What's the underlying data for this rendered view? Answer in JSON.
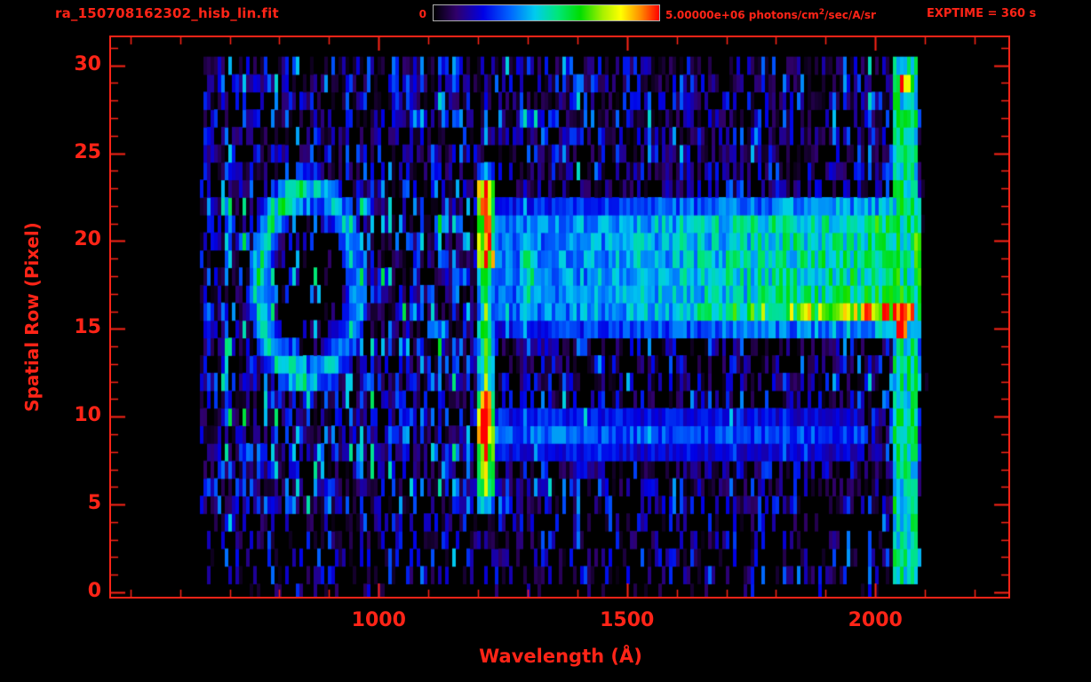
{
  "window": {
    "background": "#000000"
  },
  "style": {
    "accent": "#ff2417",
    "colorbar_border": "#b0b0b0"
  },
  "chart_data": {
    "type": "heatmap",
    "title": "ra_150708162302_hisb_lin.fit",
    "xlabel": "Wavelength (Å)",
    "ylabel": "Spatial Row (Pixel)",
    "exptime_label": "EXPTIME = 360 s",
    "colorbar": {
      "min_label": "0",
      "max_label_pre": "5.00000e+06 photons/cm",
      "max_label_sup": "2",
      "max_label_post": "/sec/A/sr",
      "min": 0,
      "max": 5000000,
      "units": "photons/cm^2/sec/A/sr"
    },
    "x_range_angstrom": [
      461,
      2268
    ],
    "y_range_rows": [
      -0.25,
      31.6
    ],
    "x_ticks": [
      1000,
      1500,
      2000
    ],
    "x_minor_step": 100,
    "y_ticks": [
      0,
      5,
      10,
      15,
      20,
      25,
      30
    ],
    "y_minor_step": 1,
    "data_extent": {
      "wavelength_angstrom": [
        638,
        2105
      ],
      "rows": [
        0,
        30
      ]
    },
    "colormap_stops": [
      {
        "t": 0.0,
        "color": "#000000"
      },
      {
        "t": 0.1,
        "color": "#30006a"
      },
      {
        "t": 0.22,
        "color": "#0000e6"
      },
      {
        "t": 0.34,
        "color": "#0066ff"
      },
      {
        "t": 0.45,
        "color": "#00ccee"
      },
      {
        "t": 0.55,
        "color": "#00e67a"
      },
      {
        "t": 0.65,
        "color": "#00dd00"
      },
      {
        "t": 0.75,
        "color": "#a8f000"
      },
      {
        "t": 0.83,
        "color": "#ffff00"
      },
      {
        "t": 0.92,
        "color": "#ff8800"
      },
      {
        "t": 1.0,
        "color": "#ff0000"
      }
    ],
    "features": [
      {
        "name": "airglow-ring",
        "type": "ring",
        "cx": 858,
        "cy": 17.6,
        "rx": 98,
        "ry": 5.3,
        "band": 0.24,
        "intensity": 0.52
      },
      {
        "name": "lyman-alpha-emission-line",
        "type": "vline",
        "wavelength": 1216,
        "half_width": 19,
        "row_min": 4.8,
        "row_max": 24.2,
        "intensity": 0.62,
        "hotspots": [
          {
            "row_min": 4.9,
            "row_max": 7.2,
            "intensity": 0.78
          },
          {
            "row_min": 7.8,
            "row_max": 11.5,
            "intensity": 0.96
          },
          {
            "row_min": 18.8,
            "row_max": 23.2,
            "intensity": 0.92
          }
        ]
      },
      {
        "name": "upper-continuum-band",
        "type": "hband",
        "row_min": 14.6,
        "row_max": 22.4,
        "wl_min": 1232,
        "wl_max": 2090,
        "i_start": 0.33,
        "i_end": 0.58
      },
      {
        "name": "bright-yellow-streak",
        "type": "hband",
        "row_min": 15.0,
        "row_max": 16.9,
        "wl_min": 1600,
        "wl_max": 2075,
        "i_start": 0.5,
        "i_end": 0.85
      },
      {
        "name": "lower-continuum-band",
        "type": "hband",
        "row_min": 7.7,
        "row_max": 10.4,
        "wl_min": 1232,
        "wl_max": 1975,
        "i_start": 0.34,
        "i_end": 0.28
      },
      {
        "name": "oi-1304-blob",
        "type": "blob",
        "cx": 1300,
        "cy": 18.0,
        "rx": 26,
        "ry": 3.6,
        "intensity": 0.55
      },
      {
        "name": "cii-1335-blob",
        "type": "blob",
        "cx": 1340,
        "cy": 17.0,
        "rx": 18,
        "ry": 3.0,
        "intensity": 0.42
      },
      {
        "name": "detector-edge-column",
        "type": "vband",
        "wl_min": 2036,
        "wl_max": 2086,
        "row_min": 0.6,
        "row_max": 30.4,
        "intensity": 0.52
      },
      {
        "name": "hot-pixel-red",
        "type": "hotpixel",
        "wavelength": 2055,
        "row": 14.6,
        "intensity": 1.0
      },
      {
        "name": "hot-pixel-red-2",
        "type": "hotpixel",
        "wavelength": 2060,
        "row": 29.2,
        "intensity": 0.95
      }
    ],
    "noise_regions": [
      {
        "rows": [
          0,
          0.9
        ],
        "wl": [
          760,
          2090
        ],
        "density": 0.15,
        "level": 0.22
      },
      {
        "rows": [
          0.9,
          4.6
        ],
        "wl": [
          655,
          2095
        ],
        "density": 0.5,
        "level": 0.3
      },
      {
        "rows": [
          23.5,
          31.2
        ],
        "wl": [
          645,
          2095
        ],
        "density": 0.78,
        "level": 0.33
      },
      {
        "rows": [
          4.6,
          23.5
        ],
        "wl": [
          638,
          1213
        ],
        "density": 0.88,
        "level": 0.4
      },
      {
        "rows": [
          4.6,
          23.5
        ],
        "wl": [
          1213,
          2095
        ],
        "density": 0.72,
        "level": 0.32
      }
    ],
    "noise_default": {
      "density": 0.06,
      "level": 0.12
    },
    "random_seed": 20150708
  }
}
